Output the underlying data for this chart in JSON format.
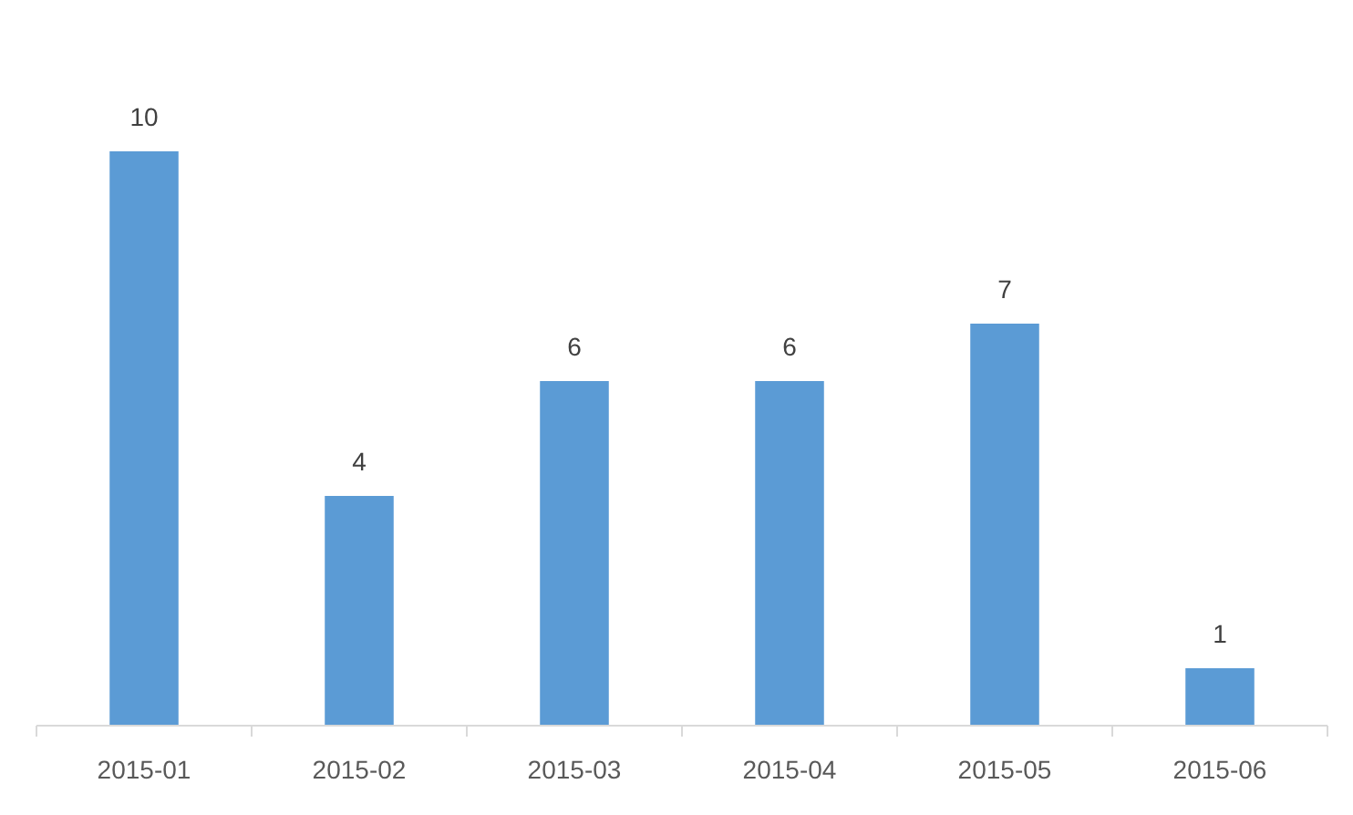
{
  "chart_data": {
    "type": "bar",
    "categories": [
      "2015-01",
      "2015-02",
      "2015-03",
      "2015-04",
      "2015-05",
      "2015-06"
    ],
    "values": [
      10,
      4,
      6,
      6,
      7,
      1
    ],
    "color": "#5b9bd5",
    "data_labels": true
  }
}
